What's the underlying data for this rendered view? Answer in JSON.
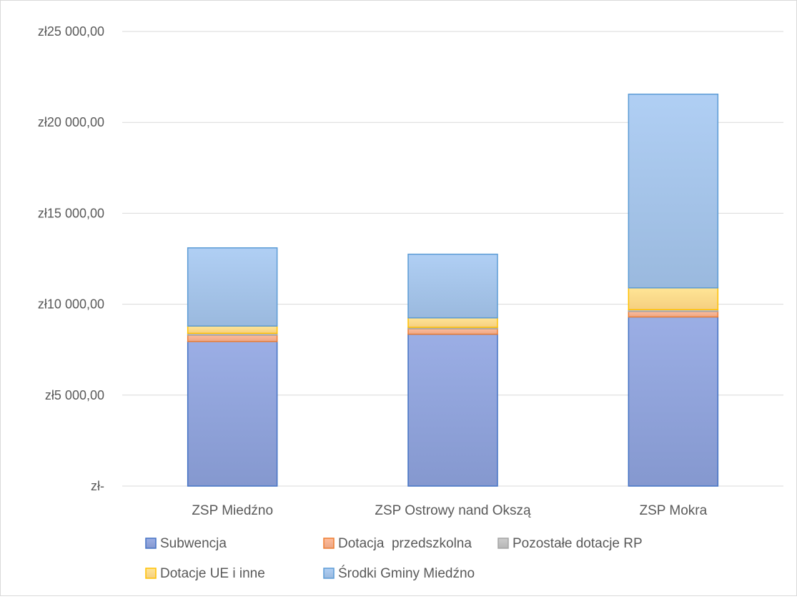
{
  "chart_data": {
    "type": "bar",
    "stacked": true,
    "categories": [
      "ZSP Miedźno",
      "ZSP Ostrowy nand Okszą",
      "ZSP Mokra"
    ],
    "series": [
      {
        "name": "Subwencja",
        "values": [
          7950,
          8350,
          9300
        ],
        "color": "#8fa2d9"
      },
      {
        "name": "Dotacja  przedszkolna",
        "values": [
          350,
          300,
          300
        ],
        "color": "#f4b08f"
      },
      {
        "name": "Pozostałe dotacje RP",
        "values": [
          100,
          80,
          100
        ],
        "color": "#c0c0c0"
      },
      {
        "name": "Dotacje UE i inne",
        "values": [
          400,
          520,
          1200
        ],
        "color": "#ffd98a"
      },
      {
        "name": "Środki Gminy Miedźno",
        "values": [
          4300,
          3500,
          10650
        ],
        "color": "#a4c3e8"
      }
    ],
    "yticks": [
      {
        "value": 0,
        "label": "zł-"
      },
      {
        "value": 5000,
        "label": "zł5 000,00"
      },
      {
        "value": 10000,
        "label": "zł10 000,00"
      },
      {
        "value": 15000,
        "label": "zł15 000,00"
      },
      {
        "value": 20000,
        "label": "zł20 000,00"
      },
      {
        "value": 25000,
        "label": "zł25 000,00"
      }
    ],
    "ylim": [
      0,
      25000
    ],
    "grid": true,
    "legend_position": "bottom",
    "title": "",
    "xlabel": "",
    "ylabel": ""
  },
  "series_edge_colors": [
    "#4472c4",
    "#ed7d31",
    "#a5a5a5",
    "#ffc000",
    "#5b9bd5"
  ]
}
